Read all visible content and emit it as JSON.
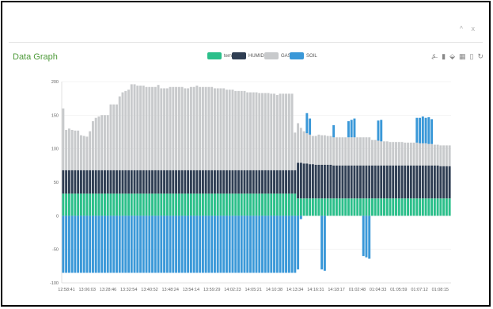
{
  "window": {
    "buttons": [
      "^",
      "x"
    ]
  },
  "panel": {
    "title": "Data Graph"
  },
  "toolbox": {
    "icons": [
      "line-chart-icon",
      "bar-chart-icon",
      "restore-icon",
      "data-view-icon",
      "save-image-icon",
      "refresh-icon"
    ],
    "glyphs": [
      "⍼",
      "▮",
      "⬙",
      "▦",
      "▯",
      "↻"
    ]
  },
  "chart_data": {
    "type": "bar",
    "stacked": true,
    "legend": [
      "temp",
      "HUMIDITY",
      "GAS",
      "SOIL"
    ],
    "colors": {
      "temp": "#2bbf8a",
      "HUMIDITY": "#2f3e53",
      "GAS": "#c8cacc",
      "SOIL": "#3a98d8"
    },
    "ylim": [
      -100,
      200
    ],
    "yticks": [
      "200",
      "150",
      "100",
      "50",
      "0",
      "-50",
      "-100"
    ],
    "xticks": [
      "12:58:41",
      "13:06:03",
      "13:28:46",
      "13:32:54",
      "13:40:52",
      "13:48:24",
      "13:54:14",
      "13:59:29",
      "14:02:23",
      "14:05:21",
      "14:10:38",
      "14:13:34",
      "14:16:31",
      "14:18:17",
      "01:02:48",
      "01:04:33",
      "01:05:59",
      "01:07:12",
      "01:08:15"
    ],
    "series": [
      {
        "name": "temp",
        "values": [
          33,
          33,
          33,
          33,
          33,
          33,
          33,
          33,
          33,
          33,
          33,
          33,
          33,
          33,
          33,
          33,
          33,
          33,
          33,
          33,
          33,
          33,
          33,
          33,
          33,
          33,
          33,
          33,
          33,
          33,
          33,
          33,
          33,
          33,
          33,
          33,
          33,
          33,
          33,
          33,
          33,
          33,
          33,
          33,
          33,
          33,
          33,
          33,
          33,
          33,
          33,
          33,
          33,
          33,
          33,
          33,
          33,
          33,
          33,
          33,
          33,
          33,
          33,
          33,
          33,
          33,
          33,
          33,
          33,
          33,
          33,
          33,
          33,
          33,
          33,
          33,
          33,
          33,
          33,
          26,
          26,
          26,
          26,
          26,
          26,
          26,
          26,
          26,
          26,
          26,
          26,
          26,
          26,
          26,
          26,
          26,
          26,
          26,
          26,
          26,
          26,
          26,
          26,
          26,
          26,
          26,
          26,
          26,
          26,
          26,
          26,
          26,
          26,
          26,
          26,
          26,
          26,
          26,
          26,
          26,
          26,
          26,
          26,
          26,
          26,
          26,
          26,
          26,
          26,
          26,
          26
        ]
      },
      {
        "name": "HUMIDITY",
        "values": [
          35,
          35,
          35,
          35,
          35,
          35,
          35,
          35,
          35,
          35,
          35,
          35,
          35,
          35,
          35,
          35,
          35,
          35,
          35,
          35,
          35,
          35,
          35,
          35,
          35,
          35,
          35,
          35,
          35,
          35,
          35,
          35,
          35,
          35,
          35,
          35,
          35,
          35,
          35,
          35,
          35,
          35,
          35,
          35,
          35,
          35,
          35,
          35,
          35,
          35,
          35,
          35,
          35,
          35,
          35,
          35,
          35,
          35,
          35,
          35,
          35,
          35,
          35,
          35,
          35,
          35,
          35,
          35,
          35,
          35,
          35,
          35,
          35,
          35,
          35,
          35,
          35,
          35,
          35,
          53,
          53,
          52,
          52,
          51,
          51,
          50,
          50,
          50,
          50,
          50,
          50,
          49,
          49,
          49,
          49,
          49,
          49,
          49,
          49,
          49,
          49,
          49,
          49,
          49,
          49,
          49,
          49,
          49,
          49,
          49,
          49,
          49,
          49,
          49,
          49,
          49,
          49,
          49,
          49,
          49,
          49,
          49,
          49,
          49,
          49,
          49,
          49,
          48,
          48,
          48,
          48
        ]
      },
      {
        "name": "GAS",
        "values": [
          92,
          60,
          62,
          60,
          59,
          59,
          52,
          51,
          50,
          58,
          73,
          78,
          80,
          82,
          82,
          82,
          98,
          98,
          98,
          110,
          116,
          118,
          120,
          128,
          128,
          126,
          126,
          126,
          124,
          124,
          124,
          124,
          127,
          122,
          122,
          122,
          124,
          124,
          124,
          124,
          124,
          122,
          122,
          124,
          124,
          126,
          124,
          124,
          124,
          124,
          124,
          122,
          122,
          122,
          122,
          120,
          120,
          120,
          118,
          118,
          118,
          118,
          116,
          116,
          116,
          116,
          115,
          115,
          115,
          115,
          114,
          114,
          112,
          114,
          114,
          114,
          114,
          114,
          56,
          59,
          52,
          48,
          45,
          44,
          42,
          43,
          45,
          44,
          44,
          43,
          43,
          42,
          42,
          42,
          42,
          42,
          42,
          42,
          42,
          42,
          42,
          42,
          42,
          42,
          38,
          38,
          37,
          36,
          36,
          36,
          35,
          35,
          35,
          35,
          35,
          34,
          34,
          34,
          34,
          34,
          33,
          33,
          33,
          32,
          32,
          31,
          31,
          31,
          31,
          31,
          31
        ]
      },
      {
        "name": "SOIL",
        "values": [
          -85,
          -85,
          -85,
          -85,
          -85,
          -85,
          -85,
          -85,
          -85,
          -85,
          -85,
          -85,
          -85,
          -85,
          -85,
          -85,
          -85,
          -85,
          -85,
          -85,
          -85,
          -85,
          -85,
          -85,
          -85,
          -85,
          -85,
          -85,
          -85,
          -85,
          -85,
          -85,
          -85,
          -85,
          -85,
          -85,
          -85,
          -85,
          -85,
          -85,
          -85,
          -85,
          -85,
          -85,
          -85,
          -85,
          -85,
          -85,
          -85,
          -85,
          -85,
          -85,
          -85,
          -85,
          -85,
          -85,
          -85,
          -85,
          -85,
          -85,
          -85,
          -85,
          -85,
          -85,
          -85,
          -85,
          -85,
          -85,
          -85,
          -85,
          -85,
          -85,
          -85,
          -85,
          -85,
          -85,
          -85,
          -85,
          -85,
          -80,
          -5,
          0,
          30,
          24,
          0,
          0,
          0,
          -80,
          -82,
          0,
          0,
          18,
          0,
          0,
          0,
          0,
          24,
          26,
          28,
          0,
          0,
          -60,
          -62,
          -64,
          0,
          0,
          30,
          32,
          0,
          0,
          0,
          0,
          0,
          0,
          0,
          0,
          0,
          0,
          0,
          37,
          38,
          40,
          38,
          40,
          37,
          0,
          0,
          0,
          0,
          0,
          0
        ]
      }
    ],
    "grid": true,
    "legend_position": "top-center"
  }
}
